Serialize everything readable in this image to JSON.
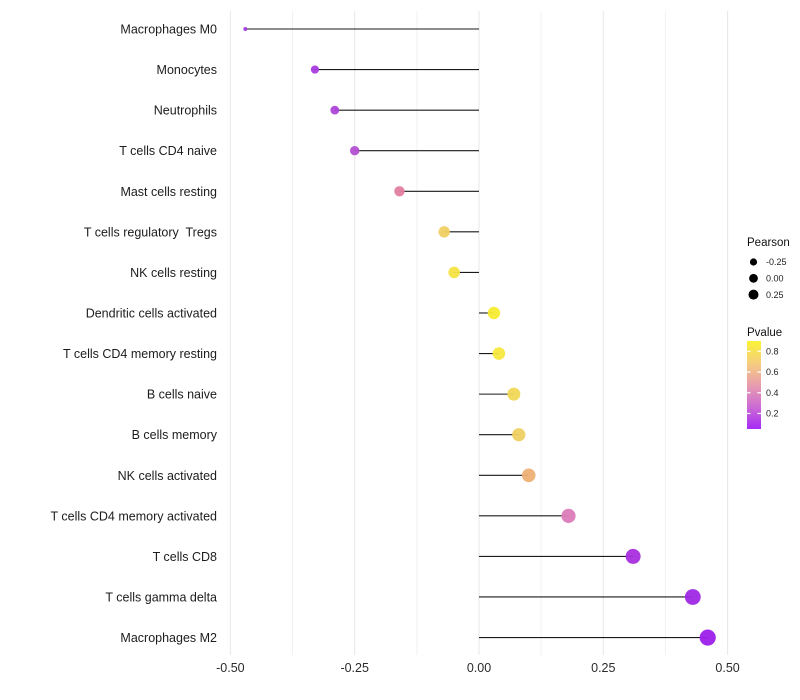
{
  "page": {
    "background": "#ffffff"
  },
  "chart_data": {
    "type": "lollipop",
    "orientation": "horizontal",
    "title": "",
    "xlabel": "",
    "ylabel": "",
    "xlim": [
      -0.52,
      0.53
    ],
    "stem_color": "#1a1a1a",
    "x_ticks": {
      "labels": [
        "-0.50",
        "-0.25",
        "0.00",
        "0.25",
        "0.50"
      ],
      "values": [
        -0.5,
        -0.25,
        0,
        0.25,
        0.5
      ]
    },
    "grid": {
      "major_values": [
        -0.5,
        -0.25,
        0,
        0.25,
        0.5
      ],
      "minor_values": [
        -0.375,
        -0.125,
        0.125,
        0.375
      ],
      "major_color": "#e7e7e7",
      "minor_color": "#f2f2f2"
    },
    "categories": [
      "Macrophages M0",
      "Monocytes",
      "Neutrophils",
      "T cells CD4 naive",
      "Mast cells resting",
      "T cells regulatory  Tregs",
      "NK cells resting",
      "Dendritic cells activated",
      "T cells CD4 memory resting",
      "B cells naive",
      "B cells memory",
      "NK cells activated",
      "T cells CD4 memory activated",
      "T cells CD8",
      "T cells gamma delta",
      "Macrophages M2"
    ],
    "points": [
      {
        "label": "Macrophages M0",
        "pearson": -0.47,
        "pvalue": 0.1,
        "color": "#a23de0",
        "radius": 2.0
      },
      {
        "label": "Monocytes",
        "pearson": -0.33,
        "pvalue": 0.15,
        "color": "#a93bdf",
        "radius": 4.1
      },
      {
        "label": "Neutrophils",
        "pearson": -0.29,
        "pvalue": 0.18,
        "color": "#ae46d8",
        "radius": 4.4
      },
      {
        "label": "T cells CD4 naive",
        "pearson": -0.25,
        "pvalue": 0.2,
        "color": "#b450d2",
        "radius": 4.7
      },
      {
        "label": "Mast cells resting",
        "pearson": -0.16,
        "pvalue": 0.45,
        "color": "#e2809f",
        "radius": 5.2
      },
      {
        "label": "T cells regulatory  Tregs",
        "pearson": -0.07,
        "pvalue": 0.7,
        "color": "#f0cf62",
        "radius": 5.7
      },
      {
        "label": "NK cells resting",
        "pearson": -0.05,
        "pvalue": 0.78,
        "color": "#f5e344",
        "radius": 5.8
      },
      {
        "label": "Dendritic cells activated",
        "pearson": 0.03,
        "pvalue": 0.85,
        "color": "#f8eb33",
        "radius": 6.2
      },
      {
        "label": "T cells CD4 memory resting",
        "pearson": 0.04,
        "pvalue": 0.82,
        "color": "#f7e83e",
        "radius": 6.3
      },
      {
        "label": "B cells naive",
        "pearson": 0.07,
        "pvalue": 0.73,
        "color": "#f1d757",
        "radius": 6.5
      },
      {
        "label": "B cells memory",
        "pearson": 0.08,
        "pvalue": 0.7,
        "color": "#efd062",
        "radius": 6.6
      },
      {
        "label": "NK cells activated",
        "pearson": 0.1,
        "pvalue": 0.58,
        "color": "#eeaf75",
        "radius": 6.8
      },
      {
        "label": "T cells CD4 memory activated",
        "pearson": 0.18,
        "pvalue": 0.38,
        "color": "#dc7bba",
        "radius": 7.1
      },
      {
        "label": "T cells CD8",
        "pearson": 0.31,
        "pvalue": 0.14,
        "color": "#a82fde",
        "radius": 7.5
      },
      {
        "label": "T cells gamma delta",
        "pearson": 0.43,
        "pvalue": 0.11,
        "color": "#9f28e5",
        "radius": 7.9
      },
      {
        "label": "Macrophages M2",
        "pearson": 0.46,
        "pvalue": 0.09,
        "color": "#9d1fe9",
        "radius": 8.1
      }
    ],
    "legend": {
      "position": "right",
      "size": {
        "title": "Pearson",
        "dot_color": "#000000",
        "entries": [
          {
            "label": "-0.25",
            "r": 3.6
          },
          {
            "label": "0.00",
            "r": 4.4
          },
          {
            "label": "0.25",
            "r": 5.0
          }
        ]
      },
      "color": {
        "title": "Pvalue",
        "tick_labels": [
          "0.8",
          "0.6",
          "0.4",
          "0.2"
        ],
        "tick_values": [
          0.8,
          0.6,
          0.4,
          0.2
        ],
        "bar_value_range_top_to_bottom": [
          0.9,
          0.05
        ],
        "gradient_top_to_bottom": [
          "#fbf336",
          "#f5ce7e",
          "#e89dae",
          "#cc6bd4",
          "#a52bf5"
        ]
      }
    }
  }
}
